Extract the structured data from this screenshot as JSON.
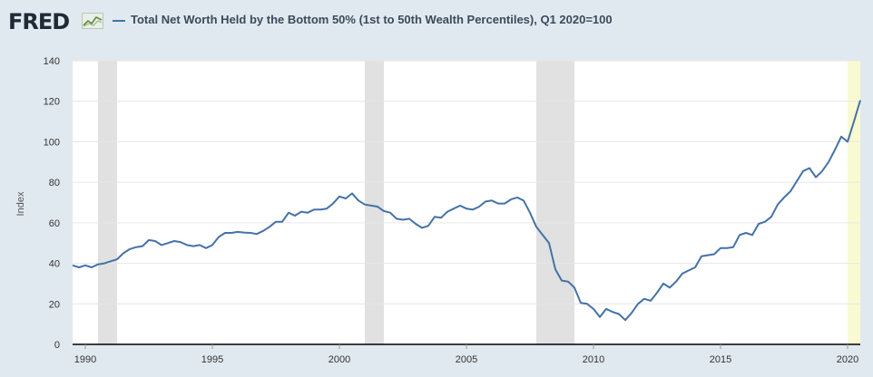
{
  "header": {
    "logo_text": "FRED",
    "title": "Total Net Worth Held by the Bottom 50% (1st to 50th Wealth Percentiles), Q1 2020=100"
  },
  "colors": {
    "series": "#4572a7",
    "recession": "#e1e1e1",
    "forecast": "#fafad2",
    "background": "#e1e9f0",
    "plot": "#ffffff"
  },
  "chart_data": {
    "type": "line",
    "title": "Total Net Worth Held by the Bottom 50% (1st to 50th Wealth Percentiles), Q1 2020=100",
    "xlabel": "",
    "ylabel": "Index",
    "xlim": [
      1989.5,
      2020.5
    ],
    "ylim": [
      0,
      140
    ],
    "x_ticks": [
      1990,
      1995,
      2000,
      2005,
      2010,
      2015,
      2020
    ],
    "y_ticks": [
      0,
      20,
      40,
      60,
      80,
      100,
      120,
      140
    ],
    "grid": "horizontal",
    "recession_shading": [
      [
        1990.5,
        1991.25
      ],
      [
        2001.0,
        2001.75
      ],
      [
        2007.75,
        2009.25
      ]
    ],
    "highlight_shading": [
      [
        2020.0,
        2020.5
      ]
    ],
    "series": [
      {
        "name": "Total Net Worth Held by the Bottom 50% (1st to 50th Wealth Percentiles), Q1 2020=100",
        "x": [
          1989.5,
          1989.75,
          1990,
          1990.25,
          1990.5,
          1990.75,
          1991,
          1991.25,
          1991.5,
          1991.75,
          1992,
          1992.25,
          1992.5,
          1992.75,
          1993,
          1993.25,
          1993.5,
          1993.75,
          1994,
          1994.25,
          1994.5,
          1994.75,
          1995,
          1995.25,
          1995.5,
          1995.75,
          1996,
          1996.25,
          1996.5,
          1996.75,
          1997,
          1997.25,
          1997.5,
          1997.75,
          1998,
          1998.25,
          1998.5,
          1998.75,
          1999,
          1999.25,
          1999.5,
          1999.75,
          2000,
          2000.25,
          2000.5,
          2000.75,
          2001,
          2001.25,
          2001.5,
          2001.75,
          2002,
          2002.25,
          2002.5,
          2002.75,
          2003,
          2003.25,
          2003.5,
          2003.75,
          2004,
          2004.25,
          2004.5,
          2004.75,
          2005,
          2005.25,
          2005.5,
          2005.75,
          2006,
          2006.25,
          2006.5,
          2006.75,
          2007,
          2007.25,
          2007.5,
          2007.75,
          2008,
          2008.25,
          2008.5,
          2008.75,
          2009,
          2009.25,
          2009.5,
          2009.75,
          2010,
          2010.25,
          2010.5,
          2010.75,
          2011,
          2011.25,
          2011.5,
          2011.75,
          2012,
          2012.25,
          2012.5,
          2012.75,
          2013,
          2013.25,
          2013.5,
          2013.75,
          2014,
          2014.25,
          2014.5,
          2014.75,
          2015,
          2015.25,
          2015.5,
          2015.75,
          2016,
          2016.25,
          2016.5,
          2016.75,
          2017,
          2017.25,
          2017.5,
          2017.75,
          2018,
          2018.25,
          2018.5,
          2018.75,
          2019,
          2019.25,
          2019.5,
          2019.75,
          2020,
          2020.25,
          2020.5
        ],
        "values": [
          39,
          38,
          39,
          38,
          39.5,
          40,
          41,
          42,
          45,
          47,
          48,
          48.5,
          51.5,
          51,
          49,
          50,
          51,
          50.5,
          49,
          48.5,
          49,
          47.5,
          49,
          53,
          55,
          55,
          55.5,
          55.2,
          55,
          54.5,
          56,
          58,
          60.5,
          60.5,
          65,
          63.5,
          65.5,
          65,
          66.5,
          66.5,
          67,
          69.5,
          73,
          72,
          74.5,
          71,
          69,
          68.5,
          68,
          65.8,
          65,
          62,
          61.5,
          62,
          59.5,
          57.5,
          58.5,
          63,
          62.5,
          65.5,
          67,
          68.5,
          67,
          66.5,
          68,
          70.5,
          71,
          69.5,
          69.5,
          71.5,
          72.5,
          71,
          65,
          58,
          54,
          50,
          37,
          31.5,
          31,
          28,
          20.5,
          20,
          17.5,
          13.5,
          17.5,
          16,
          15,
          12,
          15.5,
          20,
          22.5,
          21.5,
          25.5,
          30,
          28,
          31,
          35,
          36.5,
          38,
          43.5,
          44,
          44.5,
          47.5,
          47.5,
          48,
          54,
          55,
          54,
          59.5,
          60.5,
          63,
          69,
          72.5,
          75.5,
          80.5,
          85.5,
          87,
          82.5,
          85.5,
          90,
          96,
          102.5,
          100,
          110,
          120.5
        ]
      }
    ]
  }
}
